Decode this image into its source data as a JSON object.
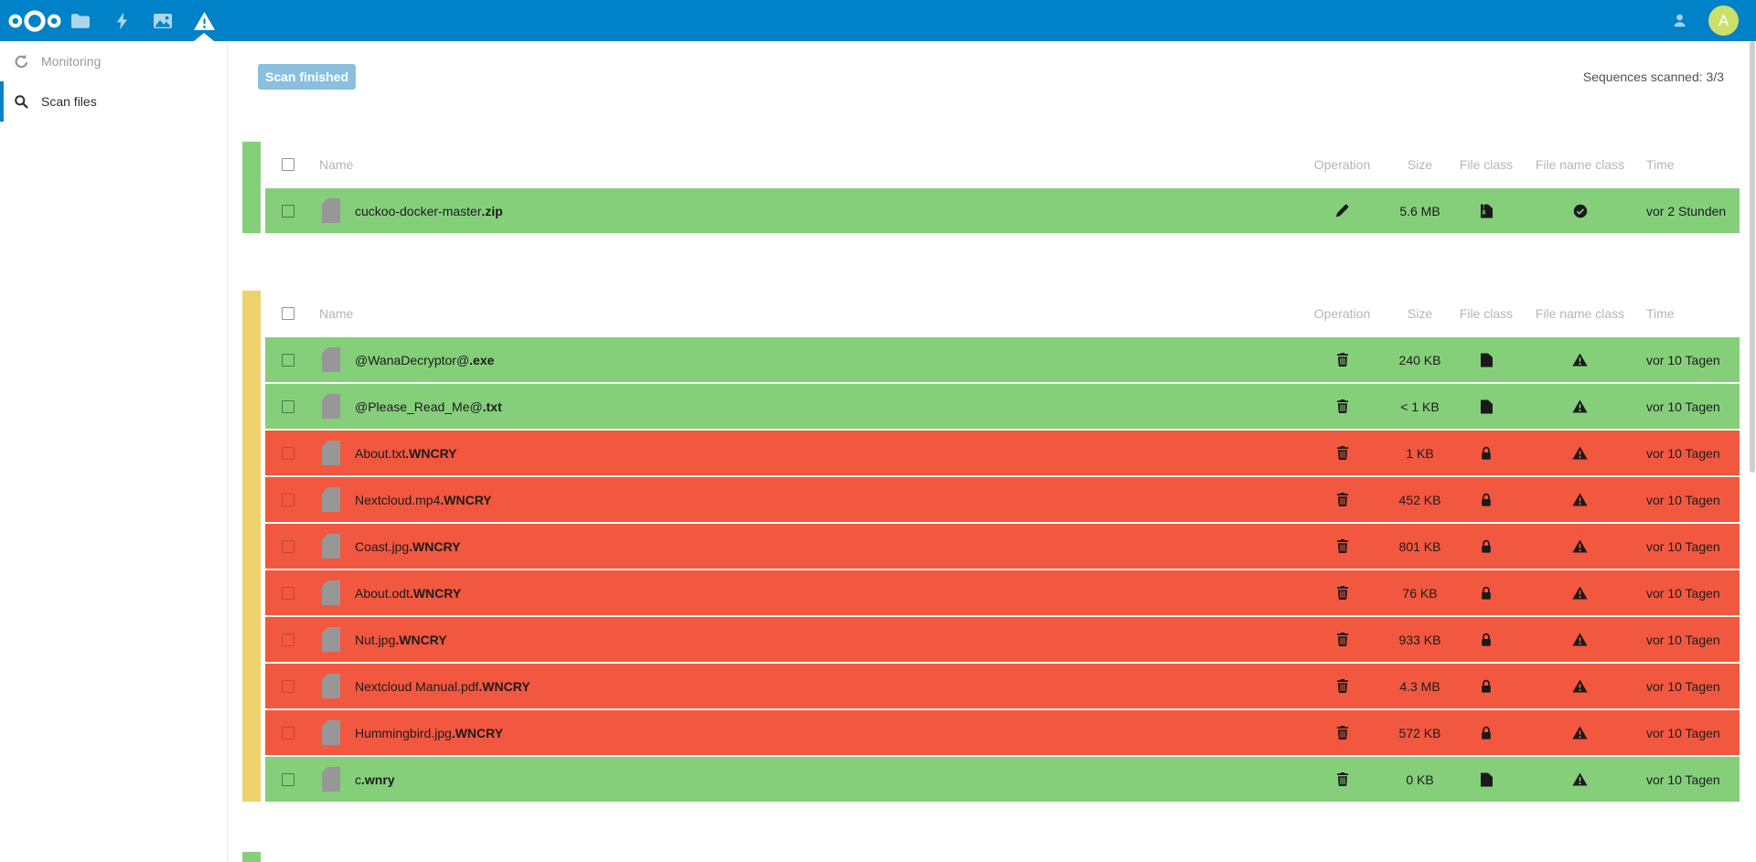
{
  "topbar": {
    "logo_icon": "nextcloud-logo",
    "apps": [
      {
        "icon": "files-icon",
        "active": false
      },
      {
        "icon": "activity-icon",
        "active": false
      },
      {
        "icon": "photos-icon",
        "active": false
      },
      {
        "icon": "ransomware-scanner-icon",
        "active": true
      }
    ],
    "contacts_icon": "contacts-icon",
    "avatar_letter": "A"
  },
  "sidebar": {
    "items": [
      {
        "label": "Monitoring",
        "icon": "monitoring-icon",
        "active": false
      },
      {
        "label": "Scan files",
        "icon": "search-icon",
        "active": true
      }
    ]
  },
  "toolbar": {
    "scan_button_label": "Scan finished",
    "sequences_scanned": "Sequences scanned: 3/3"
  },
  "columns": {
    "name": "Name",
    "operation": "Operation",
    "size": "Size",
    "file_class": "File class",
    "file_name_class": "File name class",
    "time": "Time"
  },
  "colors": {
    "blue": "#0082c9",
    "green": "#85cf7b",
    "red": "#f2573f",
    "yellow": "#efd26e",
    "button_blue": "#8ac0dd",
    "avatar": "#cbdf6a"
  },
  "sequences": [
    {
      "bar_color": "green",
      "rows": [
        {
          "name_base": "cuckoo-docker-master",
          "name_ext": ".zip",
          "status": "green",
          "operation_icon": "pencil-icon",
          "size": "5.6 MB",
          "file_class_icon": "zip-file-icon",
          "file_name_class_icon": "check-circle-icon",
          "time": "vor 2 Stunden"
        }
      ]
    },
    {
      "bar_color": "yellow",
      "rows": [
        {
          "name_base": "@WanaDecryptor@",
          "name_ext": ".exe",
          "status": "green",
          "operation_icon": "trash-icon",
          "size": "240 KB",
          "file_class_icon": "document-icon",
          "file_name_class_icon": "warning-icon",
          "time": "vor 10 Tagen"
        },
        {
          "name_base": "@Please_Read_Me@",
          "name_ext": ".txt",
          "status": "green",
          "operation_icon": "trash-icon",
          "size": "< 1 KB",
          "file_class_icon": "document-icon",
          "file_name_class_icon": "warning-icon",
          "time": "vor 10 Tagen"
        },
        {
          "name_base": "About.txt",
          "name_ext": ".WNCRY",
          "status": "red",
          "operation_icon": "trash-icon",
          "size": "1 KB",
          "file_class_icon": "lock-icon",
          "file_name_class_icon": "warning-icon",
          "time": "vor 10 Tagen"
        },
        {
          "name_base": "Nextcloud.mp4",
          "name_ext": ".WNCRY",
          "status": "red",
          "operation_icon": "trash-icon",
          "size": "452 KB",
          "file_class_icon": "lock-icon",
          "file_name_class_icon": "warning-icon",
          "time": "vor 10 Tagen"
        },
        {
          "name_base": "Coast.jpg",
          "name_ext": ".WNCRY",
          "status": "red",
          "operation_icon": "trash-icon",
          "size": "801 KB",
          "file_class_icon": "lock-icon",
          "file_name_class_icon": "warning-icon",
          "time": "vor 10 Tagen"
        },
        {
          "name_base": "About.odt",
          "name_ext": ".WNCRY",
          "status": "red",
          "operation_icon": "trash-icon",
          "size": "76 KB",
          "file_class_icon": "lock-icon",
          "file_name_class_icon": "warning-icon",
          "time": "vor 10 Tagen"
        },
        {
          "name_base": "Nut.jpg",
          "name_ext": ".WNCRY",
          "status": "red",
          "operation_icon": "trash-icon",
          "size": "933 KB",
          "file_class_icon": "lock-icon",
          "file_name_class_icon": "warning-icon",
          "time": "vor 10 Tagen"
        },
        {
          "name_base": "Nextcloud Manual.pdf",
          "name_ext": ".WNCRY",
          "status": "red",
          "operation_icon": "trash-icon",
          "size": "4.3 MB",
          "file_class_icon": "lock-icon",
          "file_name_class_icon": "warning-icon",
          "time": "vor 10 Tagen"
        },
        {
          "name_base": "Hummingbird.jpg",
          "name_ext": ".WNCRY",
          "status": "red",
          "operation_icon": "trash-icon",
          "size": "572 KB",
          "file_class_icon": "lock-icon",
          "file_name_class_icon": "warning-icon",
          "time": "vor 10 Tagen"
        },
        {
          "name_base": "c",
          "name_ext": ".wnry",
          "status": "green",
          "operation_icon": "trash-icon",
          "size": "0 KB",
          "file_class_icon": "document-icon",
          "file_name_class_icon": "warning-icon",
          "time": "vor 10 Tagen"
        }
      ]
    },
    {
      "bar_color": "green",
      "stub": true,
      "rows": []
    }
  ]
}
